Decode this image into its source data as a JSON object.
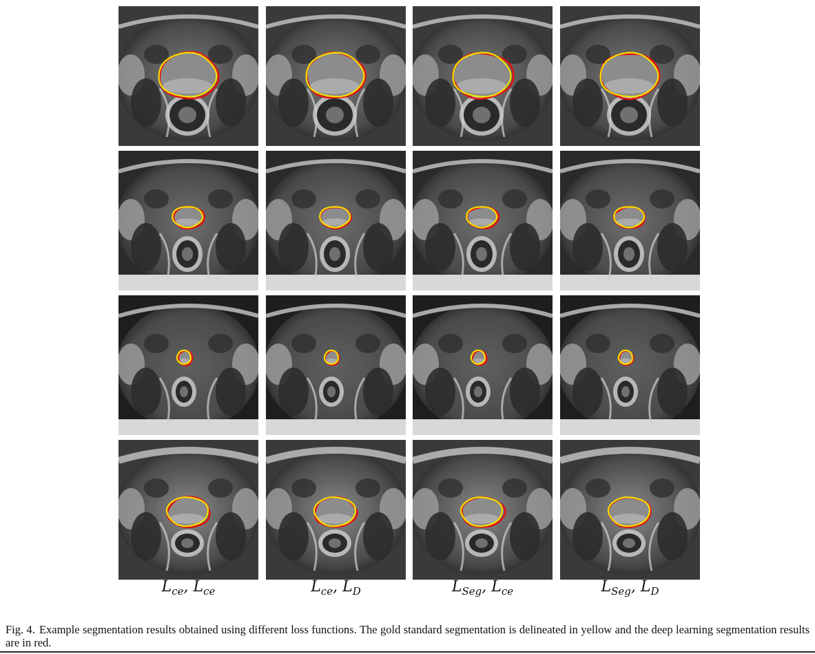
{
  "figure": {
    "column_labels": [
      {
        "main1": "L",
        "sub1": "ce",
        "sep": ", ",
        "main2": "L",
        "sub2": "ce"
      },
      {
        "main1": "L",
        "sub1": "ce",
        "sep": ", ",
        "main2": "L",
        "sub2": "D"
      },
      {
        "main1": "L",
        "sub1": "Seg",
        "sep": ", ",
        "main2": "L",
        "sub2": "ce"
      },
      {
        "main1": "L",
        "sub1": "Seg",
        "sep": ", ",
        "main2": "L",
        "sub2": "D"
      }
    ],
    "rows": 4,
    "contour_colors": {
      "gold_standard": "#f2e100",
      "deep_learning": "#e01010"
    },
    "caption": {
      "number": "Fig. 4.",
      "text": "Example segmentation results obtained using different loss functions. The gold standard segmentation is delineated in yellow and the deep learning segmentation results are in red."
    }
  }
}
